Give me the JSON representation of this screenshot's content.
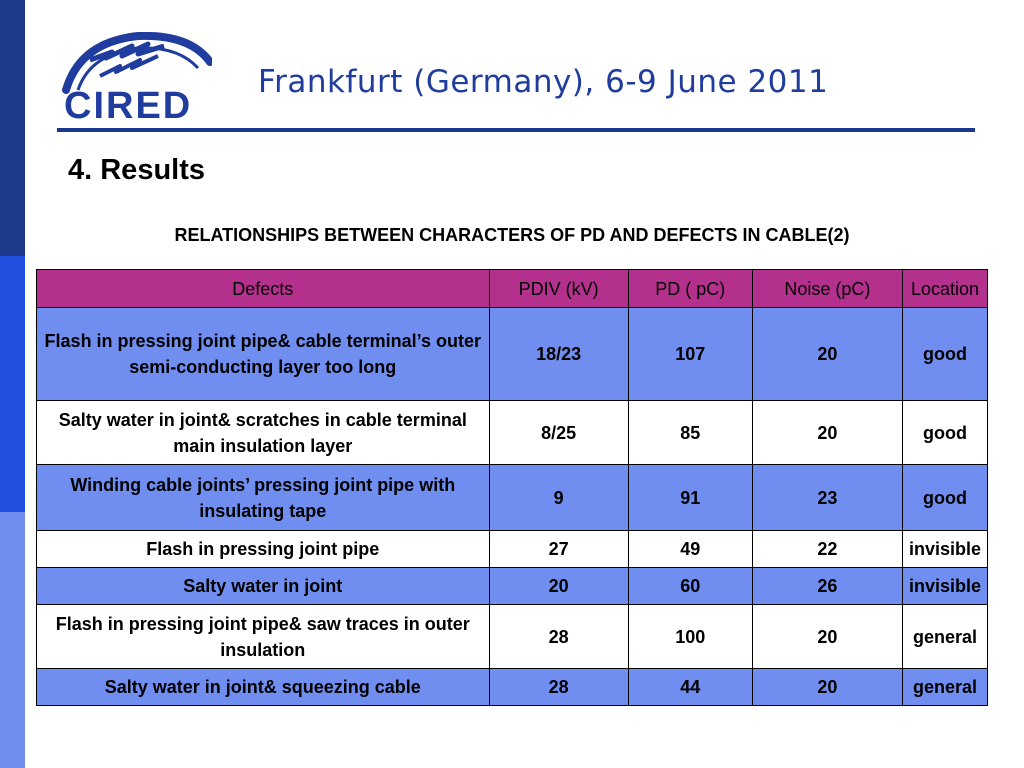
{
  "header": {
    "logo_text": "CIRED",
    "title": "Frankfurt (Germany), 6-9 June 2011"
  },
  "section_title": "4. Results",
  "table": {
    "caption": "RELATIONSHIPS BETWEEN CHARACTERS OF PD AND DEFECTS IN CABLE(2)",
    "columns": [
      "Defects",
      "PDIV (kV)",
      "PD ( pC)",
      "Noise (pC)",
      "Location"
    ],
    "rows": [
      {
        "defect": "Flash in pressing joint pipe& cable terminal’s outer semi-conducting layer too long",
        "pdiv": "18/23",
        "pd": "107",
        "noise": "20",
        "location": "good"
      },
      {
        "defect": "Salty water in joint& scratches in cable terminal main insulation layer",
        "pdiv": "8/25",
        "pd": "85",
        "noise": "20",
        "location": "good"
      },
      {
        "defect": "Winding cable joints’ pressing joint pipe with insulating tape",
        "pdiv": "9",
        "pd": "91",
        "noise": "23",
        "location": "good"
      },
      {
        "defect": "Flash in pressing joint pipe",
        "pdiv": "27",
        "pd": "49",
        "noise": "22",
        "location": "invisible"
      },
      {
        "defect": "Salty water in joint",
        "pdiv": "20",
        "pd": "60",
        "noise": "26",
        "location": "invisible"
      },
      {
        "defect": "Flash in pressing joint pipe& saw traces in outer insulation",
        "pdiv": "28",
        "pd": "100",
        "noise": "20",
        "location": "general"
      },
      {
        "defect": "Salty water in joint& squeezing cable",
        "pdiv": "28",
        "pd": "44",
        "noise": "20",
        "location": "general"
      }
    ]
  },
  "colors": {
    "header_text": "#1f3c9e",
    "header_rule": "#1a3890",
    "table_header_bg": "#b3318d",
    "row_blue_bg": "#6f8ef0",
    "row_white_bg": "#ffffff",
    "side_bar": [
      "#1e3a8a",
      "#2251df",
      "#6f8ef0"
    ]
  }
}
